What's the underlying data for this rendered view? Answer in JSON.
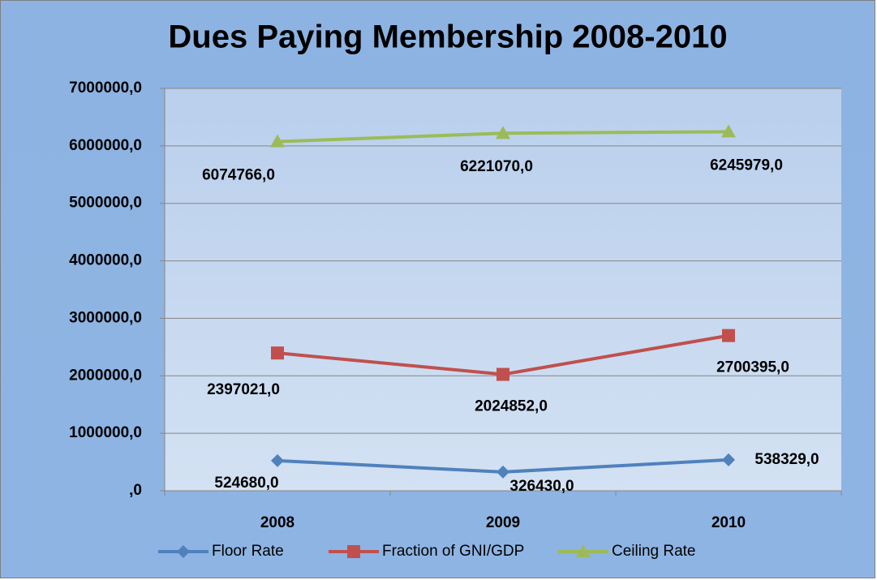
{
  "chart_data": {
    "type": "line",
    "title": "Dues Paying Membership 2008-2010",
    "categories": [
      "2008",
      "2009",
      "2010"
    ],
    "series": [
      {
        "name": "Floor Rate",
        "color": "#4f81bd",
        "marker": "diamond",
        "values": [
          524680,
          326430,
          538329
        ],
        "value_labels": [
          "524680,0",
          "326430,0",
          "538329,0"
        ]
      },
      {
        "name": "Fraction of GNI/GDP",
        "color": "#c0504d",
        "marker": "square",
        "values": [
          2397021,
          2024852,
          2700395
        ],
        "value_labels": [
          "2397021,0",
          "2024852,0",
          "2700395,0"
        ]
      },
      {
        "name": "Ceiling Rate",
        "color": "#9bbb59",
        "marker": "triangle",
        "values": [
          6074766,
          6221070,
          6245979
        ],
        "value_labels": [
          "6074766,0",
          "6221070,0",
          "6245979,0"
        ]
      }
    ],
    "ylim": [
      0,
      7000000
    ],
    "yticks": [
      {
        "value": 0,
        "label": ",0"
      },
      {
        "value": 1000000,
        "label": "1000000,0"
      },
      {
        "value": 2000000,
        "label": "2000000,0"
      },
      {
        "value": 3000000,
        "label": "3000000,0"
      },
      {
        "value": 4000000,
        "label": "4000000,0"
      },
      {
        "value": 5000000,
        "label": "5000000,0"
      },
      {
        "value": 6000000,
        "label": "6000000,0"
      },
      {
        "value": 7000000,
        "label": "7000000,0"
      }
    ],
    "grid": true,
    "legend": "bottom"
  }
}
